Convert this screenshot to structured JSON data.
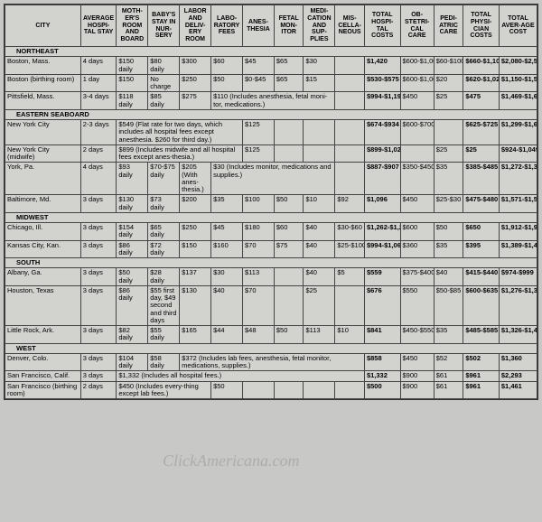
{
  "headers": [
    "CITY",
    "AVERAGE HOSPI-TAL STAY",
    "MOTH-ER'S ROOM AND BOARD",
    "BABY'S STAY IN NUR-SERY",
    "LABOR AND DELIV-ERY ROOM",
    "LABO-RATORY FEES",
    "ANES-THESIA",
    "FETAL MON-ITOR",
    "MEDI-CATION AND SUP-PLIES",
    "MIS-CELLA-NEOUS",
    "TOTAL HOSPI-TAL COSTS",
    "OB-STETRI-CAL CARE",
    "PEDI-ATRIC CARE",
    "TOTAL PHYSI-CIAN COSTS",
    "TOTAL AVER-AGE COST"
  ],
  "col_widths": [
    "72px",
    "34px",
    "30px",
    "30px",
    "30px",
    "30px",
    "30px",
    "28px",
    "30px",
    "28px",
    "34px",
    "32px",
    "28px",
    "34px",
    "36px"
  ],
  "bold_cols": [
    10,
    13,
    14
  ],
  "regions": [
    {
      "name": "NORTHEAST",
      "rows": [
        {
          "c": [
            "Boston, Mass.",
            "4 days",
            "$150 daily",
            "$80 daily",
            "$300",
            "$60",
            "$45",
            "$65",
            "$30",
            "",
            "$1,420",
            "$600-$1,000",
            "$60-$100",
            "$660-$1,100",
            "$2,080-$2,520"
          ]
        },
        {
          "c": [
            "Boston (birthing room)",
            "1 day",
            "$150",
            "No charge",
            "$250",
            "$50",
            "$0-$45",
            "$65",
            "$15",
            "",
            "$530-$575",
            "$600-$1,000",
            "$20",
            "$620-$1,020",
            "$1,150-$1,595"
          ]
        },
        {
          "c": [
            "Pittsfield, Mass.",
            "3-4 days",
            "$118 daily",
            "$85 daily",
            "$275",
            {
              "t": "$110 (Includes anesthesia, fetal moni-tor, medications.)",
              "span": 4
            },
            "",
            "$994-$1,197",
            "$450",
            "$25",
            "$475",
            "$1,469-$1,672"
          ]
        }
      ]
    },
    {
      "name": "EASTERN SEABOARD",
      "rows": [
        {
          "c": [
            "New York City",
            "2-3 days",
            {
              "t": "$549 (Flat rate for two days, which includes all hospital fees except anesthesia. $260 for third day.)",
              "span": 4
            },
            "$125",
            "",
            "",
            "",
            "$674-$934",
            "$600-$700",
            "",
            "$625-$725",
            "$1,299-$1,659"
          ]
        },
        {
          "c": [
            "New York City (midwife)",
            "2 days",
            {
              "t": "$899 (Includes midwife and all hospital fees except anes-thesia.)",
              "span": 4
            },
            "$125",
            "",
            "",
            "",
            "$899-$1,024",
            "",
            "$25",
            "$25",
            "$924-$1,049"
          ]
        },
        {
          "c": [
            "York, Pa.",
            "4 days",
            "$93 daily",
            "$70-$75 daily",
            "$205 (With anes-thesia.)",
            {
              "t": "$30 (Includes monitor, medications and supplies.)",
              "span": 4
            },
            "",
            "$887-$907",
            "$350-$450",
            "$35",
            "$385-$485",
            "$1,272-$1,392"
          ]
        },
        {
          "c": [
            "Baltimore, Md.",
            "3 days",
            "$130 daily",
            "$73 daily",
            "$200",
            "$35",
            "$100",
            "$50",
            "$10",
            "$92",
            "$1,096",
            "$450",
            "$25-$30",
            "$475-$480",
            "$1,571-$1,576"
          ]
        }
      ]
    },
    {
      "name": "MIDWEST",
      "rows": [
        {
          "c": [
            "Chicago, Ill.",
            "3 days",
            "$154 daily",
            "$65 daily",
            "$250",
            "$45",
            "$180",
            "$60",
            "$40",
            "$30-$60",
            "$1,262-$1,292",
            "$600",
            "$50",
            "$650",
            "$1,912-$1,942"
          ]
        },
        {
          "c": [
            "Kansas City, Kan.",
            "3 days",
            "$86 daily",
            "$72 daily",
            "$150",
            "$160",
            "$70",
            "$75",
            "$40",
            "$25-$100",
            "$994-$1,069",
            "$360",
            "$35",
            "$395",
            "$1,389-$1,464"
          ]
        }
      ]
    },
    {
      "name": "SOUTH",
      "rows": [
        {
          "c": [
            "Albany, Ga.",
            "3 days",
            "$50 daily",
            "$28 daily",
            "$137",
            "$30",
            "$113",
            "",
            "$40",
            "$5",
            "$559",
            "$375-$400",
            "$40",
            "$415-$440",
            "$974-$999"
          ]
        },
        {
          "c": [
            "Houston, Texas",
            "3 days",
            "$86 daily",
            "$55 first day, $49 second and third days",
            "$130",
            "$40",
            "$70",
            "",
            "$25",
            "",
            "$676",
            "$550",
            "$50-$85",
            "$600-$635",
            "$1,276-$1,311"
          ]
        },
        {
          "c": [
            "Little Rock, Ark.",
            "3 days",
            "$82 daily",
            "$55 daily",
            "$165",
            "$44",
            "$48",
            "$50",
            "$113",
            "$10",
            "$841",
            "$450-$550",
            "$35",
            "$485-$585",
            "$1,326-$1,426"
          ]
        }
      ]
    },
    {
      "name": "WEST",
      "rows": [
        {
          "c": [
            "Denver, Colo.",
            "3 days",
            "$104 daily",
            "$58 daily",
            {
              "t": "$372 (Includes lab fees, anesthesia, fetal monitor, medications, supplies.)",
              "span": 6
            },
            "$858",
            "$450",
            "$52",
            "$502",
            "$1,360"
          ]
        },
        {
          "c": [
            "San Francisco, Calif.",
            "3 days",
            {
              "t": "$1,332 (Includes all hospital fees.)",
              "span": 8
            },
            "$1,332",
            "$900",
            "$61",
            "$961",
            "$2,293"
          ]
        },
        {
          "c": [
            "San Francisco (birthing room)",
            "2 days",
            {
              "t": "$450 (Includes every-thing except lab fees.)",
              "span": 3
            },
            "$50",
            "",
            "",
            "",
            "",
            "$500",
            "$900",
            "$61",
            "$961",
            "$1,461"
          ]
        }
      ]
    }
  ],
  "watermark": "ClickAmericana.com"
}
